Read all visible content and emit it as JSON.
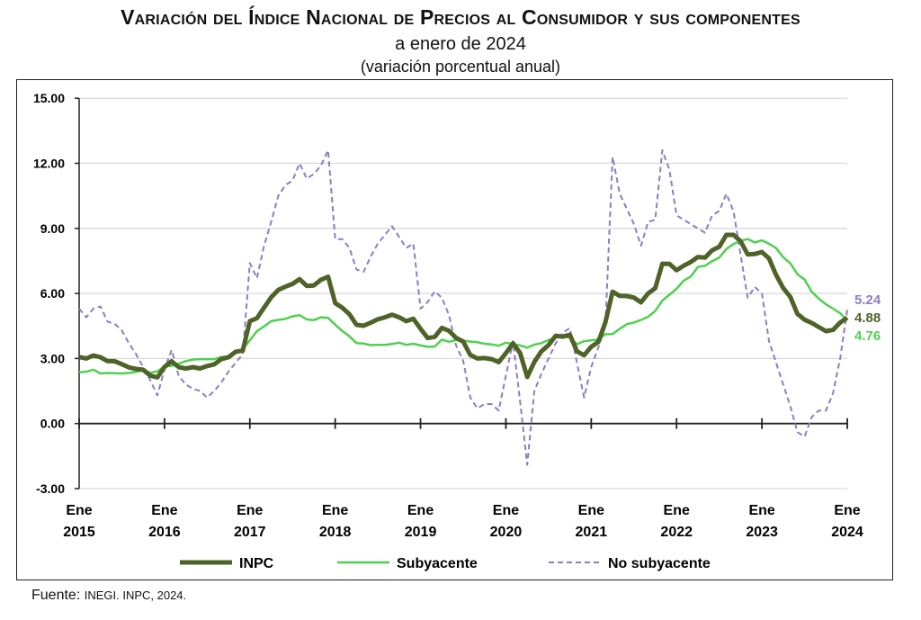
{
  "header": {
    "title": "Variación del Índice Nacional de Precios al Consumidor y sus componentes",
    "subtitle": "a enero de 2024",
    "units": "(variación porcentual anual)"
  },
  "source": {
    "label": "Fuente:",
    "text": "INEGI. INPC, 2024."
  },
  "chart_data": {
    "type": "line",
    "title": "Variación del Índice Nacional de Precios al Consumidor y sus componentes",
    "subtitle": "a enero de 2024 (variación porcentual anual)",
    "xlabel": "",
    "ylabel": "",
    "x_start": "2015-01",
    "x_end": "2024-01",
    "frequency": "monthly",
    "ylim": [
      -3,
      15
    ],
    "y_ticks": [
      "15.00",
      "12.00",
      "9.00",
      "6.00",
      "3.00",
      "0.00",
      "-3.00"
    ],
    "y_tick_values": [
      15,
      12,
      9,
      6,
      3,
      0,
      -3
    ],
    "x_ticks": [
      {
        "month": "Ene",
        "year": "2015"
      },
      {
        "month": "Ene",
        "year": "2016"
      },
      {
        "month": "Ene",
        "year": "2017"
      },
      {
        "month": "Ene",
        "year": "2018"
      },
      {
        "month": "Ene",
        "year": "2019"
      },
      {
        "month": "Ene",
        "year": "2020"
      },
      {
        "month": "Ene",
        "year": "2021"
      },
      {
        "month": "Ene",
        "year": "2022"
      },
      {
        "month": "Ene",
        "year": "2023"
      },
      {
        "month": "Ene",
        "year": "2024"
      }
    ],
    "grid": "horizontal",
    "legend_position": "bottom",
    "series": [
      {
        "name": "INPC",
        "color": "#4f6228",
        "style": "solid-thick",
        "end_label": "4.88",
        "values": [
          3.07,
          3.0,
          3.14,
          3.06,
          2.88,
          2.87,
          2.74,
          2.59,
          2.52,
          2.48,
          2.21,
          2.13,
          2.61,
          2.87,
          2.6,
          2.54,
          2.6,
          2.54,
          2.65,
          2.73,
          2.97,
          3.06,
          3.31,
          3.36,
          4.72,
          4.86,
          5.35,
          5.82,
          6.16,
          6.31,
          6.44,
          6.66,
          6.35,
          6.37,
          6.63,
          6.77,
          5.55,
          5.34,
          5.04,
          4.55,
          4.51,
          4.65,
          4.81,
          4.9,
          5.02,
          4.9,
          4.72,
          4.83,
          4.37,
          3.94,
          4.0,
          4.41,
          4.28,
          3.95,
          3.78,
          3.16,
          3.0,
          3.02,
          2.97,
          2.83,
          3.24,
          3.7,
          3.25,
          2.15,
          2.84,
          3.33,
          3.62,
          4.05,
          4.01,
          4.09,
          3.33,
          3.15,
          3.54,
          3.76,
          4.67,
          6.08,
          5.89,
          5.88,
          5.81,
          5.59,
          6.0,
          6.24,
          7.37,
          7.36,
          7.07,
          7.28,
          7.45,
          7.68,
          7.65,
          7.99,
          8.15,
          8.7,
          8.7,
          8.41,
          7.8,
          7.82,
          7.91,
          7.62,
          6.85,
          6.25,
          5.84,
          5.06,
          4.79,
          4.64,
          4.45,
          4.26,
          4.32,
          4.66,
          4.88
        ]
      },
      {
        "name": "Subyacente",
        "color": "#4fd14f",
        "style": "solid",
        "end_label": "4.76",
        "values": [
          2.36,
          2.39,
          2.48,
          2.31,
          2.33,
          2.32,
          2.31,
          2.33,
          2.38,
          2.47,
          2.34,
          2.41,
          2.64,
          2.66,
          2.76,
          2.88,
          2.95,
          2.97,
          2.97,
          2.97,
          3.07,
          3.1,
          3.29,
          3.44,
          3.84,
          4.26,
          4.48,
          4.72,
          4.78,
          4.83,
          4.94,
          5.0,
          4.8,
          4.77,
          4.9,
          4.87,
          4.56,
          4.27,
          4.02,
          3.71,
          3.69,
          3.62,
          3.63,
          3.63,
          3.67,
          3.73,
          3.63,
          3.68,
          3.6,
          3.54,
          3.55,
          3.87,
          3.77,
          3.85,
          3.82,
          3.78,
          3.75,
          3.68,
          3.65,
          3.59,
          3.73,
          3.66,
          3.6,
          3.5,
          3.64,
          3.71,
          3.85,
          3.97,
          3.99,
          3.98,
          3.66,
          3.8,
          3.84,
          3.87,
          4.12,
          4.13,
          4.37,
          4.58,
          4.66,
          4.78,
          4.92,
          5.19,
          5.67,
          5.94,
          6.21,
          6.59,
          6.78,
          7.22,
          7.28,
          7.49,
          7.65,
          8.05,
          8.28,
          8.42,
          8.51,
          8.35,
          8.45,
          8.29,
          8.09,
          7.67,
          7.39,
          6.89,
          6.64,
          6.08,
          5.76,
          5.5,
          5.3,
          5.09,
          4.76
        ]
      },
      {
        "name": "No subyacente",
        "color": "#8e7cc3",
        "style": "dashed",
        "end_label": "5.24",
        "values": [
          5.3,
          4.9,
          5.3,
          5.4,
          4.7,
          4.6,
          4.3,
          3.7,
          3.2,
          2.6,
          2.0,
          1.3,
          2.5,
          3.4,
          2.2,
          1.8,
          1.6,
          1.5,
          1.2,
          1.5,
          1.9,
          2.4,
          2.8,
          3.2,
          7.4,
          6.7,
          8.2,
          9.3,
          10.5,
          11.0,
          11.2,
          12.0,
          11.3,
          11.5,
          11.9,
          12.6,
          8.5,
          8.5,
          8.1,
          7.1,
          7.0,
          7.7,
          8.3,
          8.7,
          9.1,
          8.6,
          8.1,
          8.3,
          5.3,
          5.6,
          6.1,
          5.8,
          5.0,
          3.6,
          2.9,
          1.2,
          0.7,
          0.9,
          0.9,
          0.6,
          2.2,
          3.8,
          1.0,
          -1.9,
          1.5,
          2.3,
          3.0,
          3.7,
          4.2,
          4.4,
          2.8,
          1.2,
          2.6,
          3.5,
          4.5,
          12.3,
          10.6,
          9.9,
          9.2,
          8.2,
          9.3,
          9.4,
          12.6,
          11.7,
          9.6,
          9.4,
          9.2,
          9.0,
          8.8,
          9.6,
          9.8,
          10.6,
          9.8,
          7.8,
          5.8,
          6.3,
          6.0,
          3.8,
          2.8,
          1.8,
          0.8,
          -0.4,
          -0.6,
          0.3,
          0.6,
          0.6,
          1.4,
          3.0,
          5.24
        ]
      }
    ]
  }
}
